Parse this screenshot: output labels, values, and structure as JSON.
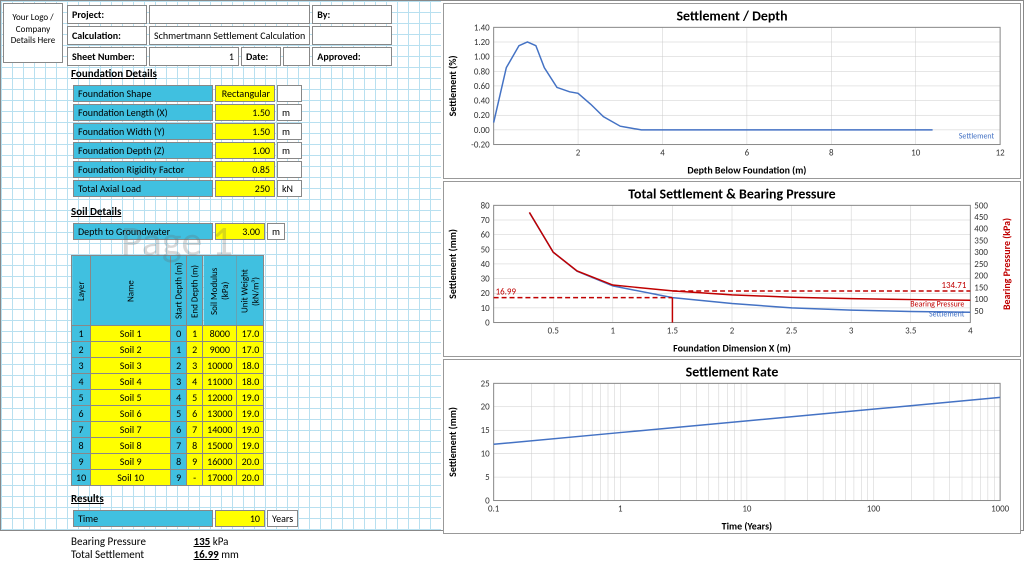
{
  "header": {
    "logo_text": "Your Logo / Company Details Here",
    "project_label": "Project:",
    "calc_label": "Calculation:",
    "calc_value": "Schmertmann Settlement Calculation",
    "sheet_label": "Sheet Number:",
    "sheet_value": "1",
    "date_label": "Date:",
    "by_label": "By:",
    "approved_label": "Approved:"
  },
  "watermark": "Page 1",
  "foundation": {
    "title": "Foundation Details",
    "rows": [
      {
        "label": "Foundation Shape",
        "value": "Rectangular",
        "unit": ""
      },
      {
        "label": "Foundation Length (X)",
        "value": "1.50",
        "unit": "m"
      },
      {
        "label": "Foundation Width (Y)",
        "value": "1.50",
        "unit": "m"
      },
      {
        "label": "Foundation Depth (Z)",
        "value": "1.00",
        "unit": "m"
      },
      {
        "label": "Foundation Rigidity Factor",
        "value": "0.85",
        "unit": ""
      },
      {
        "label": "Total Axial Load",
        "value": "250",
        "unit": "kN"
      }
    ]
  },
  "soil": {
    "title": "Soil Details",
    "groundwater_label": "Depth to Groundwater",
    "groundwater_value": "3.00",
    "groundwater_unit": "m",
    "headers": [
      "Layer",
      "Name",
      "Start Depth (m)",
      "End Depth (m)",
      "Soil Modulus (kPa)",
      "Unit Weight (kN/m³)"
    ],
    "rows": [
      [
        "1",
        "Soil 1",
        "0",
        "1",
        "8000",
        "17.0"
      ],
      [
        "2",
        "Soil 2",
        "1",
        "2",
        "9000",
        "17.0"
      ],
      [
        "3",
        "Soil 3",
        "2",
        "3",
        "10000",
        "18.0"
      ],
      [
        "4",
        "Soil 4",
        "3",
        "4",
        "11000",
        "18.0"
      ],
      [
        "5",
        "Soil 5",
        "4",
        "5",
        "12000",
        "19.0"
      ],
      [
        "6",
        "Soil 6",
        "5",
        "6",
        "13000",
        "19.0"
      ],
      [
        "7",
        "Soil 7",
        "6",
        "7",
        "14000",
        "19.0"
      ],
      [
        "8",
        "Soil 8",
        "7",
        "8",
        "15000",
        "19.0"
      ],
      [
        "9",
        "Soil 9",
        "8",
        "9",
        "16000",
        "20.0"
      ],
      [
        "10",
        "Soil 10",
        "9",
        "-",
        "17000",
        "20.0"
      ]
    ]
  },
  "results": {
    "title": "Results",
    "time_label": "Time",
    "time_value": "10",
    "time_unit": "Years",
    "bp_label": "Bearing Pressure",
    "bp_value": "135",
    "bp_unit": "kPa",
    "ts_label": "Total Settlement",
    "ts_value": "16.99",
    "ts_unit": "mm"
  },
  "chart1": {
    "title": "Settlement / Depth",
    "xlabel": "Depth Below Foundation (m)",
    "ylabel": "Settlement (%)",
    "xlim": [
      0,
      12
    ],
    "xtick_step": 2,
    "ylim": [
      -0.2,
      1.4
    ],
    "ytick_step": 0.2,
    "line_color": "#4472c4",
    "legend": "Settlement",
    "data": [
      [
        0,
        0.1
      ],
      [
        0.3,
        0.85
      ],
      [
        0.6,
        1.15
      ],
      [
        0.8,
        1.2
      ],
      [
        1.0,
        1.15
      ],
      [
        1.2,
        0.85
      ],
      [
        1.5,
        0.58
      ],
      [
        1.8,
        0.52
      ],
      [
        2.0,
        0.5
      ],
      [
        2.3,
        0.35
      ],
      [
        2.6,
        0.18
      ],
      [
        3.0,
        0.05
      ],
      [
        3.5,
        0.0
      ],
      [
        4.0,
        0.0
      ],
      [
        6.0,
        0.0
      ],
      [
        8.0,
        0.0
      ],
      [
        10.0,
        0.0
      ],
      [
        10.4,
        0.0
      ]
    ]
  },
  "chart2": {
    "title": "Total Settlement & Bearing Pressure",
    "xlabel": "Foundation Dimension X (m)",
    "ylabel": "Settlement (mm)",
    "ylabel2": "Bearing Pressure (kPa)",
    "xlim": [
      0.0,
      4.0
    ],
    "xtick_step": 0.5,
    "ylim": [
      0,
      80
    ],
    "ytick_step": 10,
    "ylim2": [
      0,
      500
    ],
    "ytick2_step": 50,
    "settlement_color": "#4472c4",
    "pressure_color": "#c00000",
    "ref_line_color": "#c00000",
    "ref_y1": "16.99",
    "ref_y2": "134.71",
    "legend1": "Bearing Pressure",
    "legend2": "Settlement",
    "settlement_data": [
      [
        0.3,
        75
      ],
      [
        0.5,
        48
      ],
      [
        0.7,
        35
      ],
      [
        1.0,
        25
      ],
      [
        1.5,
        17
      ],
      [
        2.0,
        13
      ],
      [
        2.5,
        10
      ],
      [
        3.0,
        8.5
      ],
      [
        3.5,
        7.5
      ],
      [
        4.0,
        7
      ]
    ],
    "pressure_data": [
      [
        0.3,
        470
      ],
      [
        0.5,
        300
      ],
      [
        0.7,
        220
      ],
      [
        1.0,
        160
      ],
      [
        1.5,
        135
      ],
      [
        2.0,
        118
      ],
      [
        2.5,
        108
      ],
      [
        3.0,
        102
      ],
      [
        3.5,
        98
      ],
      [
        4.0,
        95
      ]
    ]
  },
  "chart3": {
    "title": "Settlement Rate",
    "xlabel": "Time (Years)",
    "ylabel": "Settlement (mm)",
    "xlog": true,
    "xlim": [
      0.1,
      1000
    ],
    "ylim": [
      0,
      25
    ],
    "ytick_step": 5,
    "line_color": "#4472c4",
    "data": [
      [
        0.1,
        12
      ],
      [
        1,
        14.5
      ],
      [
        10,
        17
      ],
      [
        100,
        19.5
      ],
      [
        1000,
        22
      ]
    ]
  }
}
